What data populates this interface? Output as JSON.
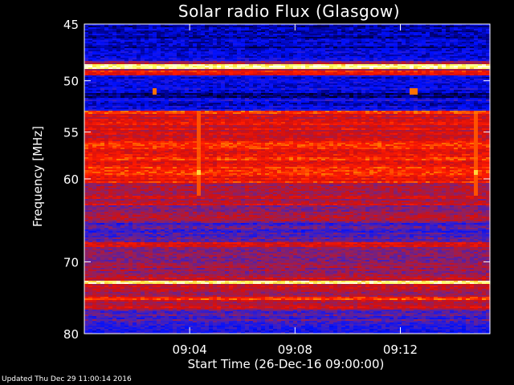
{
  "chart_data": {
    "type": "heatmap",
    "title": "Solar radio Flux (Glasgow)",
    "xlabel": "Start Time (26-Dec-16 09:00:00)",
    "ylabel": "Frequency [MHz]",
    "x_range_minutes": [
      0,
      15.4
    ],
    "x_ticks": [
      {
        "minute": 4,
        "label": "09:04"
      },
      {
        "minute": 8,
        "label": "09:08"
      },
      {
        "minute": 12,
        "label": "09:12"
      }
    ],
    "y_range_mhz": [
      80,
      45
    ],
    "y_scale": "log",
    "y_ticks": [
      {
        "mhz": 45,
        "label": "45"
      },
      {
        "mhz": 50,
        "label": "50"
      },
      {
        "mhz": 55,
        "label": "55"
      },
      {
        "mhz": 60,
        "label": "60"
      },
      {
        "mhz": 70,
        "label": "70"
      },
      {
        "mhz": 80,
        "label": "80"
      }
    ],
    "colormap": [
      "#00000a",
      "#000080",
      "#0010ff",
      "#4020c0",
      "#902060",
      "#d01010",
      "#ff1a00",
      "#ff8c00",
      "#ffff60",
      "#ffffff"
    ],
    "spectral_bands": [
      {
        "from_mhz": 44.8,
        "to_mhz": 47.0,
        "level": 0.16
      },
      {
        "from_mhz": 47.0,
        "to_mhz": 48.2,
        "level": 0.24
      },
      {
        "from_mhz": 48.2,
        "to_mhz": 48.55,
        "level": 0.45
      },
      {
        "from_mhz": 48.55,
        "to_mhz": 48.85,
        "level": 0.9
      },
      {
        "from_mhz": 48.85,
        "to_mhz": 49.05,
        "level": 0.52
      },
      {
        "from_mhz": 49.05,
        "to_mhz": 49.45,
        "level": 0.62
      },
      {
        "from_mhz": 49.45,
        "to_mhz": 51.2,
        "level": 0.22
      },
      {
        "from_mhz": 51.2,
        "to_mhz": 51.6,
        "level": 0.12
      },
      {
        "from_mhz": 51.6,
        "to_mhz": 52.8,
        "level": 0.22
      },
      {
        "from_mhz": 52.8,
        "to_mhz": 53.1,
        "level": 0.72
      },
      {
        "from_mhz": 53.1,
        "to_mhz": 56.0,
        "level": 0.58
      },
      {
        "from_mhz": 56.0,
        "to_mhz": 60.4,
        "level": 0.64
      },
      {
        "from_mhz": 60.4,
        "to_mhz": 62.5,
        "level": 0.5
      },
      {
        "from_mhz": 62.5,
        "to_mhz": 63.0,
        "level": 0.56
      },
      {
        "from_mhz": 63.0,
        "to_mhz": 64.2,
        "level": 0.44
      },
      {
        "from_mhz": 64.2,
        "to_mhz": 65.0,
        "level": 0.5
      },
      {
        "from_mhz": 65.0,
        "to_mhz": 67.5,
        "level": 0.35
      },
      {
        "from_mhz": 67.5,
        "to_mhz": 68.2,
        "level": 0.55
      },
      {
        "from_mhz": 68.2,
        "to_mhz": 72.0,
        "level": 0.44
      },
      {
        "from_mhz": 72.0,
        "to_mhz": 72.6,
        "level": 0.5
      },
      {
        "from_mhz": 72.6,
        "to_mhz": 73.0,
        "level": 0.9
      },
      {
        "from_mhz": 73.0,
        "to_mhz": 74.6,
        "level": 0.5
      },
      {
        "from_mhz": 74.6,
        "to_mhz": 75.2,
        "level": 0.68
      },
      {
        "from_mhz": 75.2,
        "to_mhz": 76.5,
        "level": 0.52
      },
      {
        "from_mhz": 76.5,
        "to_mhz": 78.5,
        "level": 0.36
      },
      {
        "from_mhz": 78.5,
        "to_mhz": 80.2,
        "level": 0.28
      }
    ],
    "vertical_features": [
      {
        "minute": 4.4,
        "from_mhz": 53.0,
        "to_mhz": 62.0,
        "level": 0.72
      },
      {
        "minute": 14.9,
        "from_mhz": 53.0,
        "to_mhz": 62.0,
        "level": 0.72
      }
    ],
    "point_features": [
      {
        "minute": 2.7,
        "mhz": 51.0,
        "level": 0.75
      },
      {
        "minute": 12.5,
        "mhz": 51.0,
        "level": 0.75
      },
      {
        "minute": 4.4,
        "mhz": 59.3,
        "level": 0.85
      },
      {
        "minute": 14.9,
        "mhz": 59.3,
        "level": 0.85
      }
    ]
  },
  "footer": {
    "updated_text": "Updated Thu Dec 29 11:00:14 2016"
  }
}
